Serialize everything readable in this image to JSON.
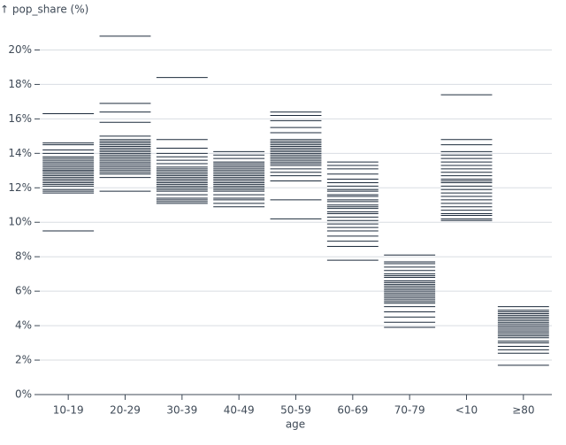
{
  "chart_data": {
    "type": "tick",
    "y_label": "↑ pop_share (%)",
    "x_label": "age",
    "categories": [
      "10-19",
      "20-29",
      "30-39",
      "40-49",
      "50-59",
      "60-69",
      "70-79",
      "<10",
      "≥80"
    ],
    "values": [
      [
        16.3,
        14.6,
        14.5,
        14.2,
        14.0,
        13.8,
        13.7,
        13.6,
        13.5,
        13.4,
        13.3,
        13.2,
        13.1,
        13.0,
        13.0,
        12.9,
        12.8,
        12.7,
        12.6,
        12.5,
        12.4,
        12.3,
        12.2,
        12.1,
        11.9,
        11.8,
        11.7,
        9.5
      ],
      [
        20.8,
        16.9,
        16.4,
        15.8,
        15.0,
        14.8,
        14.7,
        14.6,
        14.5,
        14.4,
        14.3,
        14.2,
        14.1,
        14.0,
        13.9,
        13.8,
        13.7,
        13.6,
        13.5,
        13.4,
        13.3,
        13.2,
        13.1,
        13.0,
        12.9,
        12.8,
        12.6,
        11.8
      ],
      [
        18.4,
        14.8,
        14.3,
        14.0,
        13.8,
        13.6,
        13.4,
        13.2,
        13.1,
        13.0,
        12.9,
        12.8,
        12.7,
        12.6,
        12.5,
        12.4,
        12.3,
        12.2,
        12.1,
        12.0,
        11.9,
        11.8,
        11.6,
        11.4,
        11.3,
        11.2,
        11.1
      ],
      [
        14.1,
        13.9,
        13.7,
        13.5,
        13.4,
        13.3,
        13.2,
        13.1,
        13.0,
        12.9,
        12.8,
        12.7,
        12.6,
        12.5,
        12.4,
        12.3,
        12.2,
        12.1,
        12.0,
        11.9,
        11.8,
        11.6,
        11.4,
        11.3,
        11.1,
        10.9
      ],
      [
        16.4,
        16.2,
        15.9,
        15.5,
        15.2,
        14.8,
        14.7,
        14.6,
        14.5,
        14.4,
        14.3,
        14.2,
        14.1,
        14.0,
        13.9,
        13.8,
        13.7,
        13.6,
        13.5,
        13.4,
        13.3,
        13.1,
        12.9,
        12.7,
        12.4,
        11.3,
        10.2
      ],
      [
        13.5,
        13.3,
        13.1,
        12.8,
        12.5,
        12.3,
        12.1,
        11.9,
        11.8,
        11.6,
        11.5,
        11.3,
        11.2,
        11.0,
        10.9,
        10.8,
        10.6,
        10.5,
        10.3,
        10.1,
        9.9,
        9.7,
        9.5,
        9.2,
        8.9,
        8.6,
        7.8
      ],
      [
        8.1,
        7.7,
        7.6,
        7.4,
        7.2,
        7.0,
        6.9,
        6.8,
        6.6,
        6.5,
        6.4,
        6.3,
        6.2,
        6.1,
        6.0,
        5.9,
        5.8,
        5.7,
        5.6,
        5.5,
        5.4,
        5.3,
        5.1,
        4.8,
        4.5,
        4.2,
        3.9
      ],
      [
        17.4,
        14.8,
        14.5,
        14.1,
        13.9,
        13.7,
        13.5,
        13.3,
        13.1,
        12.9,
        12.7,
        12.5,
        12.4,
        12.3,
        12.1,
        11.9,
        11.7,
        11.5,
        11.3,
        11.1,
        10.9,
        10.7,
        10.5,
        10.4,
        10.2,
        10.1
      ],
      [
        5.1,
        4.9,
        4.8,
        4.7,
        4.6,
        4.5,
        4.4,
        4.3,
        4.2,
        4.1,
        4.0,
        3.9,
        3.8,
        3.7,
        3.6,
        3.5,
        3.4,
        3.3,
        3.1,
        3.0,
        2.8,
        2.6,
        2.4,
        1.7
      ]
    ],
    "color": "#1d2b3c",
    "ylim": [
      0,
      21
    ],
    "yticks": [
      {
        "value": 0,
        "label": "0%"
      },
      {
        "value": 2,
        "label": "2%"
      },
      {
        "value": 4,
        "label": "4%"
      },
      {
        "value": 6,
        "label": "6%"
      },
      {
        "value": 8,
        "label": "8%"
      },
      {
        "value": 10,
        "label": "10%"
      },
      {
        "value": 12,
        "label": "12%"
      },
      {
        "value": 14,
        "label": "14%"
      },
      {
        "value": 16,
        "label": "16%"
      },
      {
        "value": 18,
        "label": "18%"
      },
      {
        "value": 20,
        "label": "20%"
      }
    ],
    "grid": true
  }
}
